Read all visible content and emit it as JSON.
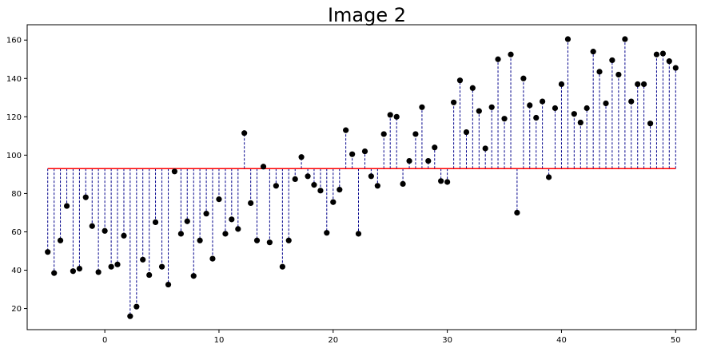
{
  "chart_data": {
    "type": "scatter",
    "title": "Image 2",
    "xlabel": "",
    "ylabel": "",
    "xlim": [
      -6.8,
      51.8
    ],
    "ylim": [
      9,
      168
    ],
    "xticks": [
      0,
      10,
      20,
      30,
      40,
      50
    ],
    "yticks": [
      20,
      40,
      60,
      80,
      100,
      120,
      140,
      160
    ],
    "grid": false,
    "mean_value": 93,
    "colors": {
      "points": "#000000",
      "stems": "#00008b",
      "mean_line": "#ff0000"
    },
    "series": [
      {
        "marker": "dot",
        "x": [
          -5.0,
          -4.44,
          -3.89,
          -3.33,
          -2.78,
          -2.22,
          -1.67,
          -1.11,
          -0.56,
          0.0,
          0.56,
          1.11,
          1.67,
          2.22,
          2.78,
          3.33,
          3.89,
          4.44,
          5.0,
          5.56,
          6.11,
          6.67,
          7.22,
          7.78,
          8.33,
          8.89,
          9.44,
          10.0,
          10.56,
          11.11,
          11.67,
          12.22,
          12.78,
          13.33,
          13.89,
          14.44,
          15.0,
          15.56,
          16.11,
          16.67,
          17.22,
          17.78,
          18.33,
          18.89,
          19.44,
          20.0,
          20.56,
          21.11,
          21.67,
          22.22,
          22.78,
          23.33,
          23.89,
          24.44,
          25.0,
          25.56,
          26.11,
          26.67,
          27.22,
          27.78,
          28.33,
          28.89,
          29.44,
          30.0,
          30.56,
          31.11,
          31.67,
          32.22,
          32.78,
          33.33,
          33.89,
          34.44,
          35.0,
          35.56,
          36.11,
          36.67,
          37.22,
          37.78,
          38.33,
          38.89,
          39.44,
          40.0,
          40.56,
          41.11,
          41.67,
          42.22,
          42.78,
          43.33,
          43.89,
          44.44,
          45.0,
          45.56,
          46.11,
          46.67,
          47.22,
          47.78,
          48.33,
          48.89,
          49.44,
          50.0
        ],
        "y": [
          49.5,
          38.5,
          55.5,
          73.5,
          39.5,
          40.8,
          78,
          63,
          39,
          60.5,
          41.8,
          43,
          58,
          16,
          21,
          45.5,
          37.5,
          65,
          41.8,
          32.5,
          91.5,
          59,
          65.5,
          37,
          55.5,
          69.5,
          46,
          77,
          59,
          66.5,
          61.5,
          111.5,
          75,
          55.5,
          94,
          54.5,
          84,
          41.8,
          55.5,
          87.5,
          99,
          89,
          84.5,
          81.5,
          59.5,
          75.5,
          82,
          113,
          100.5,
          59,
          102,
          89,
          84,
          111,
          121,
          120,
          85,
          97,
          111,
          125,
          97,
          104,
          86.5,
          86,
          127.5,
          139,
          112,
          135,
          123,
          103.5,
          125,
          150,
          119,
          152.5,
          70,
          140,
          126,
          119.5,
          128,
          88.5,
          124.5,
          137,
          160.5,
          121.5,
          117,
          124.5,
          154,
          143.5,
          127,
          149.5,
          142,
          160.5,
          128,
          137,
          137,
          116.5,
          152.5,
          153,
          149,
          145.5
        ]
      }
    ]
  }
}
